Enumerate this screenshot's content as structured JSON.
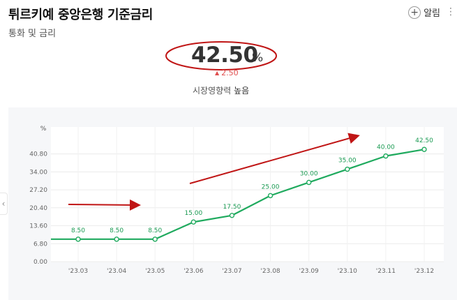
{
  "header": {
    "title": "튀르키예 중앙은행 기준금리",
    "subtitle": "통화 및 금리",
    "alarm_label": "알림",
    "more_icon": "more-vertical-icon"
  },
  "rate": {
    "value": "42.50",
    "unit": "%",
    "change": "2.50",
    "change_direction": "up",
    "impact_label": "시장영향력",
    "impact_level": "높음"
  },
  "colors": {
    "line": "#1faa5e",
    "highlight_red": "#c01515",
    "up_red": "#e04e4e"
  },
  "chart_data": {
    "type": "line",
    "y_unit": "%",
    "categories": [
      "'23.03",
      "'23.04",
      "'23.05",
      "'23.06",
      "'23.07",
      "'23.08",
      "'23.09",
      "'23.10",
      "'23.11",
      "'23.12"
    ],
    "series": [
      {
        "values": [
          8.5,
          8.5,
          8.5,
          15.0,
          17.5,
          25.0,
          30.0,
          35.0,
          40.0,
          42.5
        ]
      }
    ],
    "data_labels": [
      "8.50",
      "8.50",
      "8.50",
      "15.00",
      "17.50",
      "25.00",
      "30.00",
      "35.00",
      "40.00",
      "42.50"
    ],
    "y_ticks": [
      0,
      6.8,
      13.6,
      20.4,
      27.2,
      34.0,
      40.8
    ],
    "y_tick_labels": [
      "0.00",
      "6.80",
      "13.60",
      "20.40",
      "27.20",
      "34.00",
      "40.80"
    ],
    "ylim": [
      0,
      51.0
    ],
    "grid": true
  }
}
